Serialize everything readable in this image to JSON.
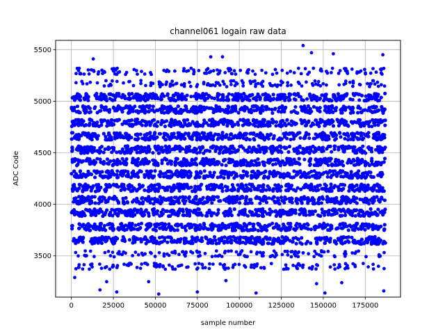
{
  "chart_data": {
    "type": "scatter",
    "title": "channel061 logain raw data",
    "xlabel": "sample number",
    "ylabel": "ADC Code",
    "xlim": [
      -9400,
      196000
    ],
    "ylim": [
      3100,
      5590
    ],
    "xticks": [
      0,
      25000,
      50000,
      75000,
      100000,
      125000,
      150000,
      175000
    ],
    "yticks": [
      3500,
      4000,
      4500,
      5000,
      5500
    ],
    "grid": true,
    "marker_color": "#0000ff",
    "x_range_of_samples": [
      0,
      187000
    ],
    "dense_levels": [
      3650,
      3780,
      3920,
      4040,
      4160,
      4290,
      4410,
      4530,
      4660,
      4790,
      4920,
      5040
    ],
    "sparse_levels": [
      3400,
      3520,
      5170,
      5290
    ],
    "outliers": [
      {
        "x": 138000,
        "y": 5540
      },
      {
        "x": 156000,
        "y": 5460
      },
      {
        "x": 143000,
        "y": 5470
      },
      {
        "x": 185500,
        "y": 5450
      },
      {
        "x": 83000,
        "y": 5430
      },
      {
        "x": 90000,
        "y": 5430
      },
      {
        "x": 13000,
        "y": 5410
      },
      {
        "x": 2000,
        "y": 3290
      },
      {
        "x": 17000,
        "y": 3170
      },
      {
        "x": 27000,
        "y": 3150
      },
      {
        "x": 52000,
        "y": 3130
      },
      {
        "x": 75000,
        "y": 3150
      },
      {
        "x": 110000,
        "y": 3140
      },
      {
        "x": 151000,
        "y": 3140
      },
      {
        "x": 186000,
        "y": 3160
      },
      {
        "x": 146000,
        "y": 3230
      },
      {
        "x": 161000,
        "y": 3240
      },
      {
        "x": 46000,
        "y": 3250
      },
      {
        "x": 92000,
        "y": 3260
      },
      {
        "x": 21000,
        "y": 3250
      }
    ]
  }
}
